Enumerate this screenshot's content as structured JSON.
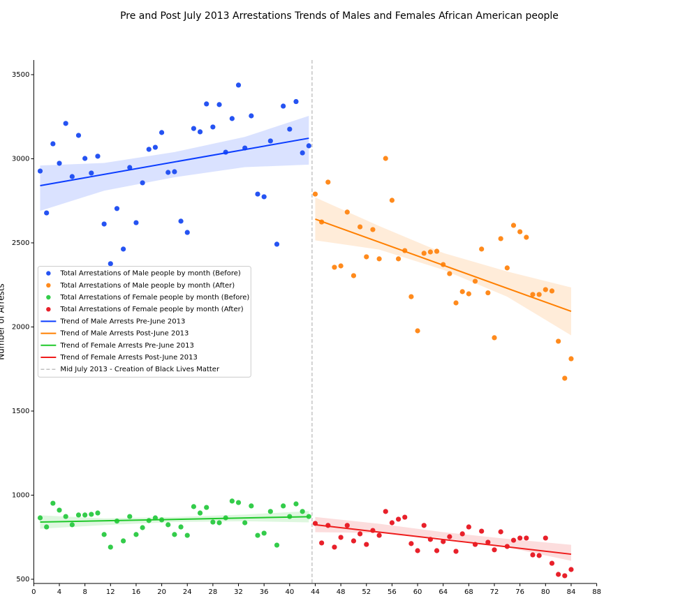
{
  "chart_data": {
    "type": "scatter",
    "title": "Pre and Post July 2013 Arrestations Trends of Males and Females African American people",
    "ylabel": "Number of Arrests",
    "xlim": [
      0,
      88
    ],
    "ylim": [
      475,
      3587
    ],
    "xticks": [
      0,
      4,
      8,
      12,
      16,
      20,
      24,
      28,
      32,
      36,
      40,
      44,
      48,
      52,
      56,
      60,
      64,
      68,
      72,
      76,
      80,
      84,
      88
    ],
    "yticks": [
      500,
      1000,
      1500,
      2000,
      2500,
      3000,
      3500
    ],
    "legend": "center left",
    "series": [
      {
        "name": "Total Arrestations of Male people by month (Before)",
        "color": "#2553f2",
        "x": [
          1,
          2,
          3,
          4,
          5,
          6,
          7,
          8,
          9,
          10,
          11,
          12,
          13,
          14,
          15,
          16,
          17,
          18,
          19,
          20,
          21,
          22,
          23,
          24,
          25,
          26,
          27,
          28,
          29,
          30,
          31,
          32,
          33,
          34,
          35,
          36,
          37,
          38,
          39,
          40,
          41,
          42,
          43
        ],
        "values": [
          2927,
          2678,
          3089,
          2973,
          3210,
          2894,
          3139,
          3002,
          2915,
          3015,
          2612,
          2376,
          2704,
          2463,
          2948,
          2620,
          2857,
          3056,
          3068,
          3156,
          2919,
          2923,
          2629,
          2562,
          3180,
          3160,
          3326,
          3189,
          3322,
          3039,
          3239,
          3438,
          3064,
          3255,
          2790,
          2774,
          3106,
          2492,
          3313,
          3176,
          3340,
          3035,
          3077
        ]
      },
      {
        "name": "Total Arrestations of Male people by month (After)",
        "color": "#ff8a1c",
        "x": [
          44,
          45,
          46,
          47,
          48,
          49,
          50,
          51,
          52,
          53,
          54,
          55,
          56,
          57,
          58,
          59,
          60,
          61,
          62,
          63,
          64,
          65,
          66,
          67,
          68,
          69,
          70,
          71,
          72,
          73,
          74,
          75,
          76,
          77,
          78,
          79,
          80,
          81,
          82,
          83,
          84
        ],
        "values": [
          2790,
          2624,
          2861,
          2355,
          2363,
          2683,
          2305,
          2595,
          2417,
          2579,
          2405,
          3002,
          2753,
          2405,
          2454,
          2180,
          1977,
          2438,
          2446,
          2450,
          2371,
          2317,
          2143,
          2210,
          2197,
          2272,
          2463,
          2203,
          1936,
          2525,
          2351,
          2604,
          2566,
          2533,
          2193,
          2193,
          2222,
          2214,
          1915,
          1695,
          1811
        ]
      },
      {
        "name": "Total Arrestations of Female people by month (Before)",
        "color": "#33cc4a",
        "x": [
          1,
          2,
          3,
          4,
          5,
          6,
          7,
          8,
          9,
          10,
          11,
          12,
          13,
          14,
          15,
          16,
          17,
          18,
          19,
          20,
          21,
          22,
          23,
          24,
          25,
          26,
          27,
          28,
          29,
          30,
          31,
          32,
          33,
          34,
          35,
          36,
          37,
          38,
          39,
          40,
          41,
          42,
          43
        ],
        "values": [
          865,
          811,
          952,
          911,
          873,
          824,
          882,
          882,
          886,
          894,
          766,
          691,
          846,
          728,
          873,
          766,
          807,
          849,
          865,
          853,
          824,
          766,
          811,
          761,
          932,
          894,
          927,
          840,
          836,
          865,
          965,
          956,
          836,
          936,
          761,
          774,
          903,
          703,
          936,
          873,
          948,
          903,
          873
        ]
      },
      {
        "name": "Total Arrestations of Female people by month (After)",
        "color": "#e8202a",
        "x": [
          44,
          45,
          46,
          47,
          48,
          49,
          50,
          51,
          52,
          53,
          54,
          55,
          56,
          57,
          58,
          59,
          60,
          61,
          62,
          63,
          64,
          65,
          66,
          67,
          68,
          69,
          70,
          71,
          72,
          73,
          74,
          75,
          76,
          77,
          78,
          79,
          80,
          81,
          82,
          83,
          84
        ],
        "values": [
          832,
          716,
          820,
          691,
          749,
          820,
          728,
          770,
          707,
          790,
          761,
          903,
          836,
          857,
          869,
          712,
          670,
          820,
          737,
          670,
          724,
          753,
          666,
          770,
          811,
          707,
          786,
          720,
          675,
          782,
          695,
          732,
          745,
          745,
          645,
          641,
          745,
          595,
          529,
          521,
          558
        ]
      }
    ],
    "trends": [
      {
        "name": "Trend of Male Arrests Pre-June 2013",
        "color": "#0a3cff",
        "x": [
          1,
          43
        ],
        "values": [
          2840,
          3122
        ],
        "band": {
          "x": [
            1,
            11,
            22,
            33,
            43
          ],
          "upper": [
            2960,
            2975,
            3040,
            3130,
            3255
          ],
          "lower": [
            2690,
            2810,
            2890,
            2950,
            2965
          ]
        }
      },
      {
        "name": "Trend of Male Arrests Post-June 2013",
        "color": "#ff7f00",
        "x": [
          44,
          84
        ],
        "values": [
          2641,
          2093
        ],
        "band": {
          "x": [
            44,
            54,
            64,
            74,
            84
          ],
          "upper": [
            2770,
            2600,
            2440,
            2330,
            2235
          ],
          "lower": [
            2515,
            2460,
            2340,
            2180,
            1950
          ]
        }
      },
      {
        "name": "Trend of Female Arrests Pre-June 2013",
        "color": "#1fc82a",
        "x": [
          1,
          43
        ],
        "values": [
          840,
          872
        ],
        "band": {
          "x": [
            1,
            11,
            22,
            33,
            43
          ],
          "upper": [
            880,
            862,
            870,
            885,
            905
          ],
          "lower": [
            800,
            822,
            840,
            845,
            838
          ]
        }
      },
      {
        "name": "Trend of Female Arrests Post-June 2013",
        "color": "#ee1c1c",
        "x": [
          44,
          84
        ],
        "values": [
          824,
          649
        ],
        "band": {
          "x": [
            44,
            54,
            64,
            74,
            84
          ],
          "upper": [
            870,
            830,
            780,
            740,
            705
          ],
          "lower": [
            780,
            775,
            745,
            690,
            610
          ]
        }
      }
    ],
    "vline": {
      "x": 43.5,
      "label": "Mid July 2013 - Creation of Black Lives Matter",
      "color": "#bbbbbb"
    }
  }
}
